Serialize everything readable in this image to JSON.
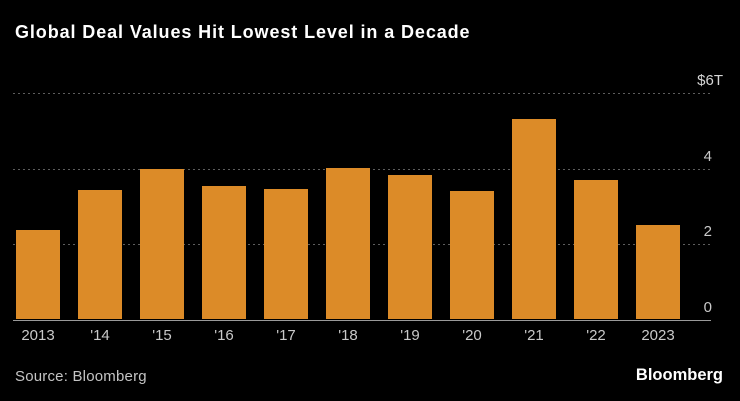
{
  "header": {
    "title": "Global Deal Values Hit Lowest Level in a Decade"
  },
  "footer": {
    "source_label": "Source: Bloomberg",
    "brand": "Bloomberg"
  },
  "colors": {
    "background": "#000000",
    "bar": "#DC8B28",
    "gridline": "#5D5D5D",
    "axis_line": "#9A9A9A",
    "tick_label": "#C9C9C9",
    "title_text": "#FFFFFF"
  },
  "chart_data": {
    "type": "bar",
    "title": "Global Deal Values Hit Lowest Level in a Decade",
    "categories": [
      "2013",
      "'14",
      "'15",
      "'16",
      "'17",
      "'18",
      "'19",
      "'20",
      "'21",
      "'22",
      "2023"
    ],
    "values": [
      2.35,
      3.42,
      3.96,
      3.52,
      3.43,
      3.98,
      3.82,
      3.38,
      5.29,
      3.68,
      2.48
    ],
    "units": "trillion USD",
    "ylim": [
      0,
      6
    ],
    "yticks": [
      {
        "value": 6,
        "label": "$6T"
      },
      {
        "value": 4,
        "label": "4"
      },
      {
        "value": 2,
        "label": "2"
      },
      {
        "value": 0,
        "label": "0"
      }
    ],
    "grid": "horizontal-dotted",
    "legend": "none",
    "axis_side": "right"
  }
}
